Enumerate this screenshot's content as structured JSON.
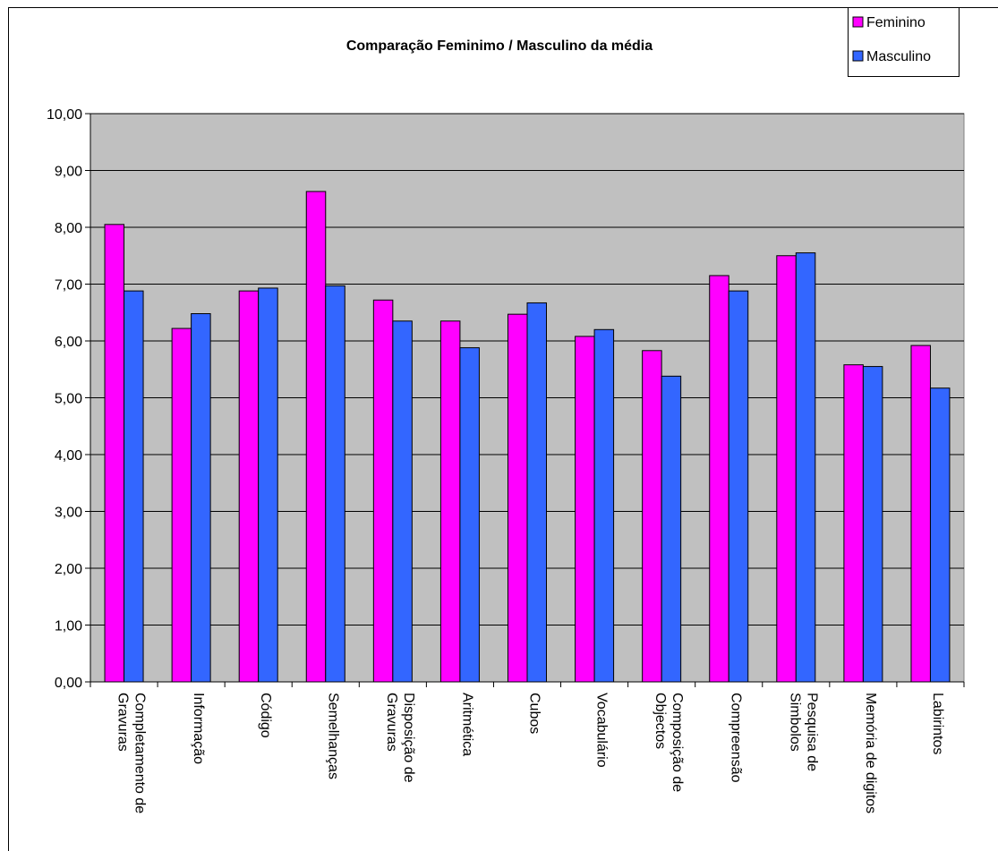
{
  "chart_data": {
    "type": "bar",
    "title": "Comparação Feminimo / Masculino da média",
    "categories": [
      "Completamento de Gravuras",
      "Informação",
      "Código",
      "Semelhanças",
      "Disposição de Gravuras",
      "Aritmética",
      "Cubos",
      "Vocabulário",
      "Composição de Objectos",
      "Compreensão",
      "Pesquisa de Simbolos",
      "Memória de digitos",
      "Labirintos"
    ],
    "series": [
      {
        "name": "Feminino",
        "color": "#ff00ff",
        "values": [
          8.05,
          6.22,
          6.88,
          8.63,
          6.72,
          6.35,
          6.47,
          6.08,
          5.83,
          7.15,
          7.5,
          5.58,
          5.92
        ]
      },
      {
        "name": "Masculino",
        "color": "#3366ff",
        "values": [
          6.88,
          6.48,
          6.93,
          6.97,
          6.35,
          5.88,
          6.67,
          6.2,
          5.38,
          6.88,
          7.55,
          5.55,
          5.17
        ]
      }
    ],
    "ylim": [
      0,
      10
    ],
    "yticks": [
      {
        "value": 0,
        "label": "0,00"
      },
      {
        "value": 1,
        "label": "1,00"
      },
      {
        "value": 2,
        "label": "2,00"
      },
      {
        "value": 3,
        "label": "3,00"
      },
      {
        "value": 4,
        "label": "4,00"
      },
      {
        "value": 5,
        "label": "5,00"
      },
      {
        "value": 6,
        "label": "6,00"
      },
      {
        "value": 7,
        "label": "7,00"
      },
      {
        "value": 8,
        "label": "8,00"
      },
      {
        "value": 9,
        "label": "9,00"
      },
      {
        "value": 10,
        "label": "10,00"
      }
    ],
    "grid": true,
    "legend": "top-right",
    "plot_background": "#c0c0c0"
  }
}
